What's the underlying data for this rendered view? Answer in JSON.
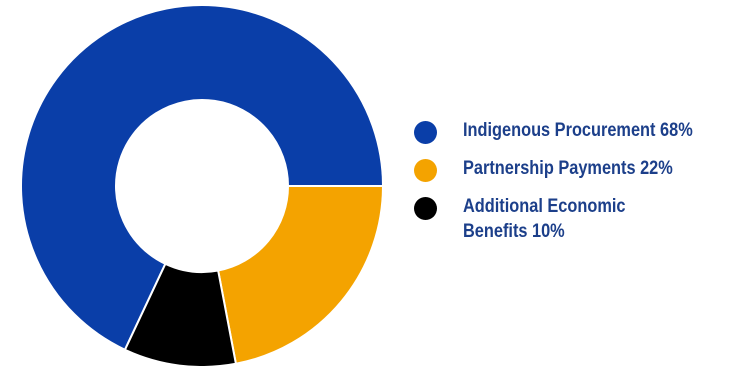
{
  "chart_data": {
    "type": "pie",
    "variant": "donut",
    "categories": [
      "Indigenous Procurement",
      "Partnership Payments",
      "Additional Economic Benefits"
    ],
    "values": [
      68,
      22,
      10
    ],
    "colors": [
      "#0a3ea8",
      "#f4a300",
      "#000000"
    ],
    "unit": "%",
    "legend_placement": "right",
    "legend": [
      {
        "label": "Indigenous Procurement 68%",
        "color": "#0a3ea8"
      },
      {
        "label": "Partnership Payments 22%",
        "color": "#f4a300"
      },
      {
        "label": "Additional Economic Benefits 10%",
        "color": "#000000"
      }
    ]
  },
  "colors": {
    "legend_text": "#1c3f8a",
    "background": "#ffffff"
  }
}
